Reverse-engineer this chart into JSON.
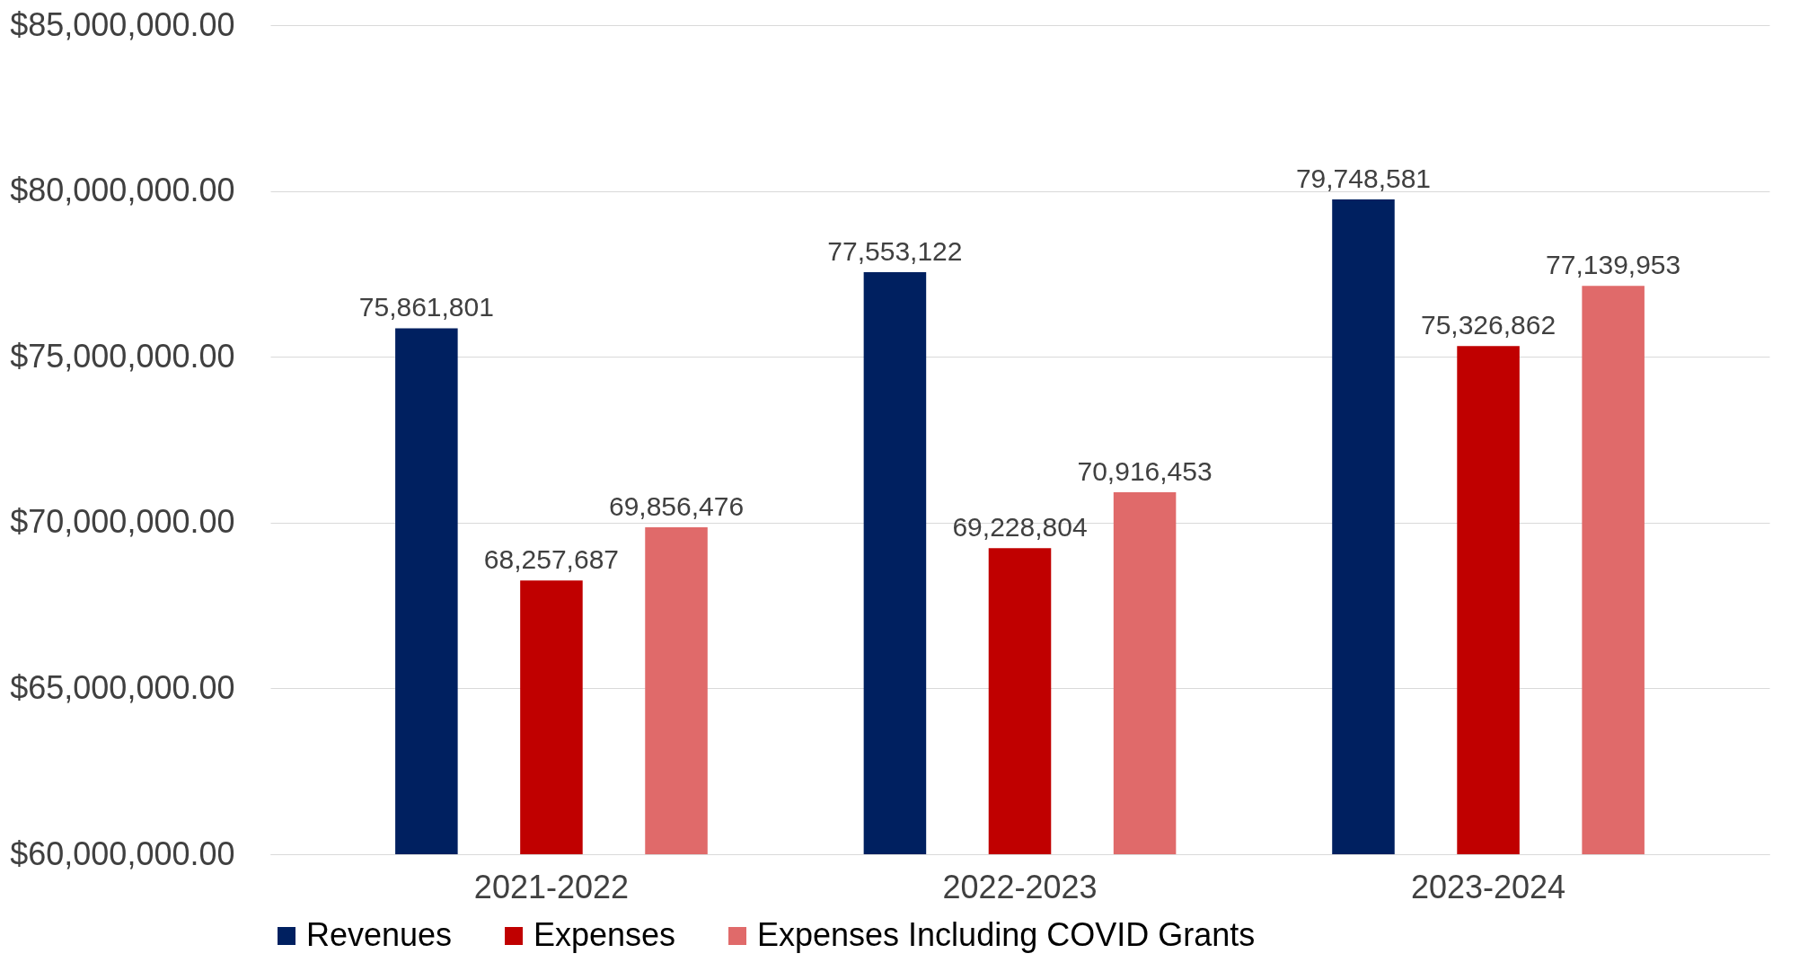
{
  "chart_data": {
    "type": "bar",
    "categories": [
      "2021-2022",
      "2022-2023",
      "2023-2024"
    ],
    "series": [
      {
        "name": "Revenues",
        "color": "#002060",
        "values": [
          75861801,
          77553122,
          79748581
        ],
        "value_labels": [
          "75,861,801",
          "77,553,122",
          "79,748,581"
        ]
      },
      {
        "name": "Expenses",
        "color": "#c00000",
        "values": [
          68257687,
          69228804,
          75326862
        ],
        "value_labels": [
          "68,257,687",
          "69,228,804",
          "75,326,862"
        ]
      },
      {
        "name": "Expenses Including COVID Grants",
        "color": "#e06a6a",
        "values": [
          69856476,
          70916453,
          77139953
        ],
        "value_labels": [
          "69,856,476",
          "70,916,453",
          "77,139,953"
        ]
      }
    ],
    "ylim": [
      60000000,
      85000000
    ],
    "yticks": [
      {
        "value": 60000000,
        "label": "$60,000,000.00"
      },
      {
        "value": 65000000,
        "label": "$65,000,000.00"
      },
      {
        "value": 70000000,
        "label": "$70,000,000.00"
      },
      {
        "value": 75000000,
        "label": "$75,000,000.00"
      },
      {
        "value": 80000000,
        "label": "$80,000,000.00"
      },
      {
        "value": 85000000,
        "label": "$85,000,000.00"
      }
    ],
    "grid": "y",
    "legend": "bottom"
  }
}
